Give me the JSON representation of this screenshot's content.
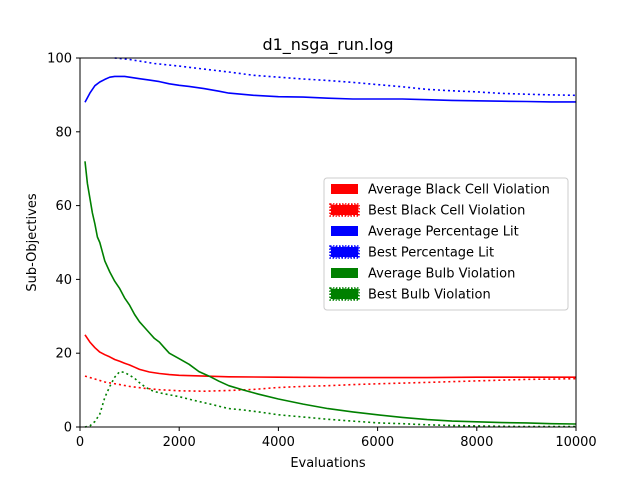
{
  "chart_data": {
    "type": "line",
    "title": "d1_nsga_run.log",
    "xlabel": "Evaluations",
    "ylabel": "Sub-Objectives",
    "xlim": [
      0,
      10000
    ],
    "ylim": [
      0,
      100
    ],
    "xticks": [
      0,
      2000,
      4000,
      6000,
      8000,
      10000
    ],
    "yticks": [
      0,
      20,
      40,
      60,
      80,
      100
    ],
    "grid": false,
    "legend_position": "center-right",
    "series": [
      {
        "name": "Average Black Cell Violation",
        "color": "#ff0000",
        "style": "solid",
        "points": [
          [
            100,
            25
          ],
          [
            200,
            23
          ],
          [
            300,
            21.5
          ],
          [
            400,
            20.3
          ],
          [
            500,
            19.6
          ],
          [
            600,
            19
          ],
          [
            700,
            18.3
          ],
          [
            800,
            17.8
          ],
          [
            900,
            17.3
          ],
          [
            1000,
            16.8
          ],
          [
            1100,
            16.2
          ],
          [
            1200,
            15.6
          ],
          [
            1400,
            14.9
          ],
          [
            1600,
            14.5
          ],
          [
            1800,
            14.2
          ],
          [
            2000,
            14
          ],
          [
            2500,
            13.8
          ],
          [
            3000,
            13.6
          ],
          [
            4000,
            13.5
          ],
          [
            5000,
            13.4
          ],
          [
            6000,
            13.4
          ],
          [
            7000,
            13.4
          ],
          [
            8000,
            13.5
          ],
          [
            9000,
            13.5
          ],
          [
            10000,
            13.5
          ]
        ]
      },
      {
        "name": "Best Black Cell Violation",
        "color": "#ff0000",
        "style": "dotted",
        "points": [
          [
            100,
            13.8
          ],
          [
            300,
            13
          ],
          [
            500,
            12.2
          ],
          [
            800,
            11.5
          ],
          [
            1000,
            11
          ],
          [
            1300,
            10.5
          ],
          [
            1600,
            10.1
          ],
          [
            2000,
            9.8
          ],
          [
            2500,
            9.7
          ],
          [
            3000,
            9.9
          ],
          [
            3500,
            10.2
          ],
          [
            4000,
            10.7
          ],
          [
            4500,
            11
          ],
          [
            5000,
            11.2
          ],
          [
            5500,
            11.5
          ],
          [
            6000,
            11.7
          ],
          [
            6500,
            11.9
          ],
          [
            7000,
            12.1
          ],
          [
            8000,
            12.5
          ],
          [
            9000,
            12.9
          ],
          [
            10000,
            13.1
          ]
        ]
      },
      {
        "name": "Average Percentage Lit",
        "color": "#0000ff",
        "style": "solid",
        "points": [
          [
            100,
            88
          ],
          [
            200,
            90.5
          ],
          [
            300,
            92.5
          ],
          [
            400,
            93.5
          ],
          [
            500,
            94.2
          ],
          [
            600,
            94.8
          ],
          [
            700,
            95
          ],
          [
            800,
            95
          ],
          [
            900,
            95
          ],
          [
            1000,
            94.8
          ],
          [
            1200,
            94.4
          ],
          [
            1400,
            94
          ],
          [
            1600,
            93.6
          ],
          [
            1800,
            93
          ],
          [
            2000,
            92.6
          ],
          [
            2200,
            92.3
          ],
          [
            2500,
            91.7
          ],
          [
            2800,
            91
          ],
          [
            3000,
            90.5
          ],
          [
            3500,
            89.9
          ],
          [
            4000,
            89.5
          ],
          [
            4500,
            89.4
          ],
          [
            5000,
            89.1
          ],
          [
            5500,
            88.9
          ],
          [
            6000,
            88.9
          ],
          [
            6500,
            88.9
          ],
          [
            7000,
            88.7
          ],
          [
            7500,
            88.5
          ],
          [
            8000,
            88.4
          ],
          [
            8500,
            88.3
          ],
          [
            9000,
            88.2
          ],
          [
            9500,
            88.1
          ],
          [
            10000,
            88.1
          ]
        ]
      },
      {
        "name": "Best Percentage Lit",
        "color": "#0000ff",
        "style": "dotted",
        "points": [
          [
            700,
            100
          ],
          [
            1000,
            99.6
          ],
          [
            1500,
            98.5
          ],
          [
            2000,
            97.8
          ],
          [
            2500,
            97
          ],
          [
            3000,
            96.2
          ],
          [
            3500,
            95.3
          ],
          [
            4000,
            94.8
          ],
          [
            4500,
            94.3
          ],
          [
            5000,
            93.9
          ],
          [
            5500,
            93.4
          ],
          [
            6000,
            92.8
          ],
          [
            6500,
            92.2
          ],
          [
            7000,
            91.5
          ],
          [
            7500,
            91.1
          ],
          [
            8000,
            90.8
          ],
          [
            8500,
            90.4
          ],
          [
            9000,
            90.2
          ],
          [
            9500,
            90
          ],
          [
            10000,
            89.9
          ]
        ]
      },
      {
        "name": "Average Bulb Violation",
        "color": "#008000",
        "style": "solid",
        "points": [
          [
            100,
            72
          ],
          [
            150,
            66
          ],
          [
            200,
            62
          ],
          [
            250,
            58
          ],
          [
            300,
            55
          ],
          [
            350,
            51.5
          ],
          [
            400,
            50
          ],
          [
            450,
            47.5
          ],
          [
            500,
            45
          ],
          [
            600,
            42
          ],
          [
            700,
            39.5
          ],
          [
            800,
            37.5
          ],
          [
            900,
            35
          ],
          [
            1000,
            33
          ],
          [
            1100,
            30.5
          ],
          [
            1200,
            28.5
          ],
          [
            1300,
            27
          ],
          [
            1400,
            25.5
          ],
          [
            1500,
            24
          ],
          [
            1600,
            23
          ],
          [
            1700,
            21.5
          ],
          [
            1800,
            20
          ],
          [
            2000,
            18.5
          ],
          [
            2200,
            17
          ],
          [
            2400,
            15
          ],
          [
            2600,
            13.8
          ],
          [
            2800,
            12.4
          ],
          [
            3000,
            11.2
          ],
          [
            3300,
            10
          ],
          [
            3600,
            8.9
          ],
          [
            4000,
            7.6
          ],
          [
            4500,
            6.2
          ],
          [
            5000,
            5
          ],
          [
            5500,
            4.1
          ],
          [
            6000,
            3.3
          ],
          [
            6500,
            2.6
          ],
          [
            7000,
            2
          ],
          [
            7500,
            1.6
          ],
          [
            8000,
            1.4
          ],
          [
            8500,
            1.2
          ],
          [
            9000,
            1.1
          ],
          [
            9500,
            0.9
          ],
          [
            10000,
            0.8
          ]
        ]
      },
      {
        "name": "Best Bulb Violation",
        "color": "#008000",
        "style": "dotted",
        "points": [
          [
            100,
            0
          ],
          [
            200,
            0.3
          ],
          [
            300,
            1.5
          ],
          [
            400,
            3.5
          ],
          [
            500,
            8
          ],
          [
            600,
            11
          ],
          [
            700,
            13.5
          ],
          [
            800,
            15
          ],
          [
            900,
            14.8
          ],
          [
            1000,
            14
          ],
          [
            1100,
            13.2
          ],
          [
            1200,
            12
          ],
          [
            1300,
            11
          ],
          [
            1400,
            10.2
          ],
          [
            1500,
            9.6
          ],
          [
            1700,
            9
          ],
          [
            2000,
            8.2
          ],
          [
            2300,
            7.2
          ],
          [
            2600,
            6.3
          ],
          [
            3000,
            5
          ],
          [
            3300,
            4.6
          ],
          [
            3700,
            3.9
          ],
          [
            4000,
            3.3
          ],
          [
            4500,
            2.7
          ],
          [
            5000,
            2.1
          ],
          [
            5500,
            1.6
          ],
          [
            6000,
            1.1
          ],
          [
            6500,
            0.9
          ],
          [
            7000,
            0.6
          ],
          [
            7500,
            0.4
          ],
          [
            8000,
            0.3
          ],
          [
            8500,
            0.2
          ],
          [
            9000,
            0.1
          ],
          [
            9500,
            0.1
          ],
          [
            10000,
            0.1
          ]
        ]
      }
    ]
  }
}
